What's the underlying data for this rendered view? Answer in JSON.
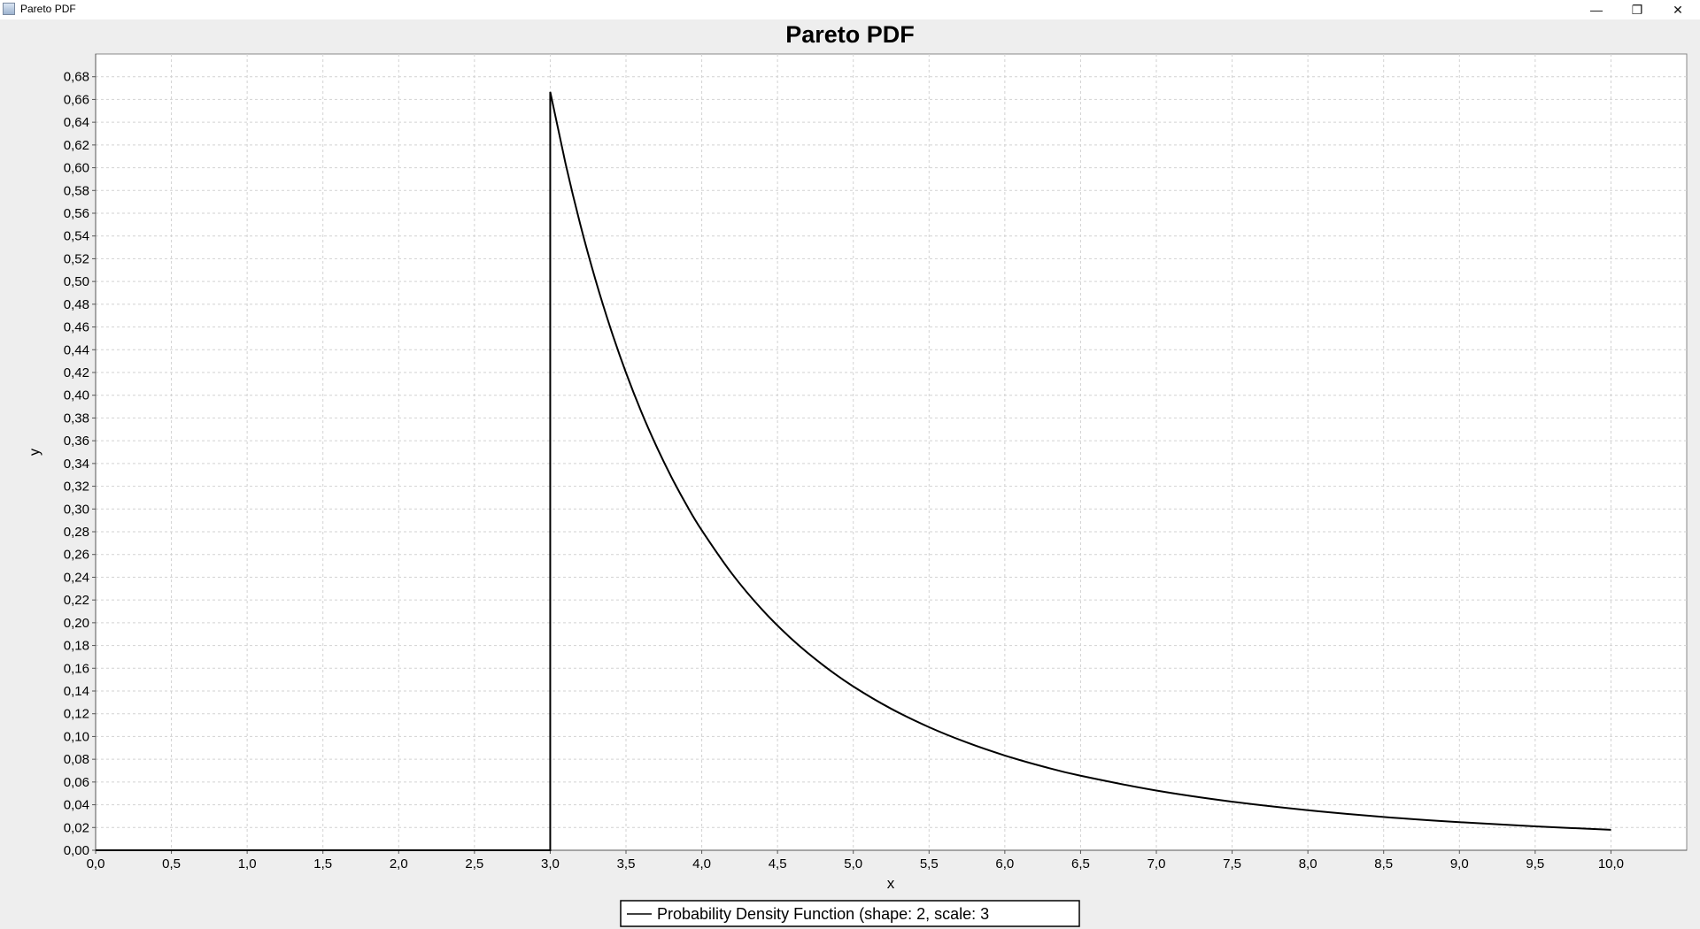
{
  "window": {
    "title": "Pareto PDF",
    "minimize_glyph": "—",
    "restore_glyph": "❐",
    "close_glyph": "✕"
  },
  "chart_data": {
    "type": "line",
    "title": "Pareto PDF",
    "xlabel": "x",
    "ylabel": "y",
    "xlim": [
      0,
      10.5
    ],
    "ylim": [
      0,
      0.7
    ],
    "x_ticks": [
      "0,0",
      "0,5",
      "1,0",
      "1,5",
      "2,0",
      "2,5",
      "3,0",
      "3,5",
      "4,0",
      "4,5",
      "5,0",
      "5,5",
      "6,0",
      "6,5",
      "7,0",
      "7,5",
      "8,0",
      "8,5",
      "9,0",
      "9,5",
      "10,0"
    ],
    "y_ticks": [
      "0,00",
      "0,02",
      "0,04",
      "0,06",
      "0,08",
      "0,10",
      "0,12",
      "0,14",
      "0,16",
      "0,18",
      "0,20",
      "0,22",
      "0,24",
      "0,26",
      "0,28",
      "0,30",
      "0,32",
      "0,34",
      "0,36",
      "0,38",
      "0,40",
      "0,42",
      "0,44",
      "0,46",
      "0,48",
      "0,50",
      "0,52",
      "0,54",
      "0,56",
      "0,58",
      "0,60",
      "0,62",
      "0,64",
      "0,66",
      "0,68"
    ],
    "grid": true,
    "legend_position": "bottom",
    "series": [
      {
        "name": "Probability Density Function (shape: 2, scale: 3",
        "color": "#000000",
        "x": [
          0,
          3.0,
          3.0,
          3.1,
          3.2,
          3.3,
          3.4,
          3.5,
          3.6,
          3.7,
          3.8,
          3.9,
          4.0,
          4.2,
          4.4,
          4.6,
          4.8,
          5.0,
          5.25,
          5.5,
          5.75,
          6.0,
          6.25,
          6.5,
          7.0,
          7.5,
          8.0,
          8.5,
          9.0,
          9.5,
          10.0
        ],
        "y": [
          0,
          0,
          0.6667,
          0.6043,
          0.5493,
          0.5009,
          0.458,
          0.4198,
          0.3858,
          0.3554,
          0.328,
          0.3034,
          0.2813,
          0.243,
          0.2113,
          0.1849,
          0.1628,
          0.144,
          0.1244,
          0.1082,
          0.0947,
          0.0833,
          0.0737,
          0.0655,
          0.0525,
          0.0427,
          0.0352,
          0.0293,
          0.0247,
          0.021,
          0.018
        ]
      }
    ]
  }
}
